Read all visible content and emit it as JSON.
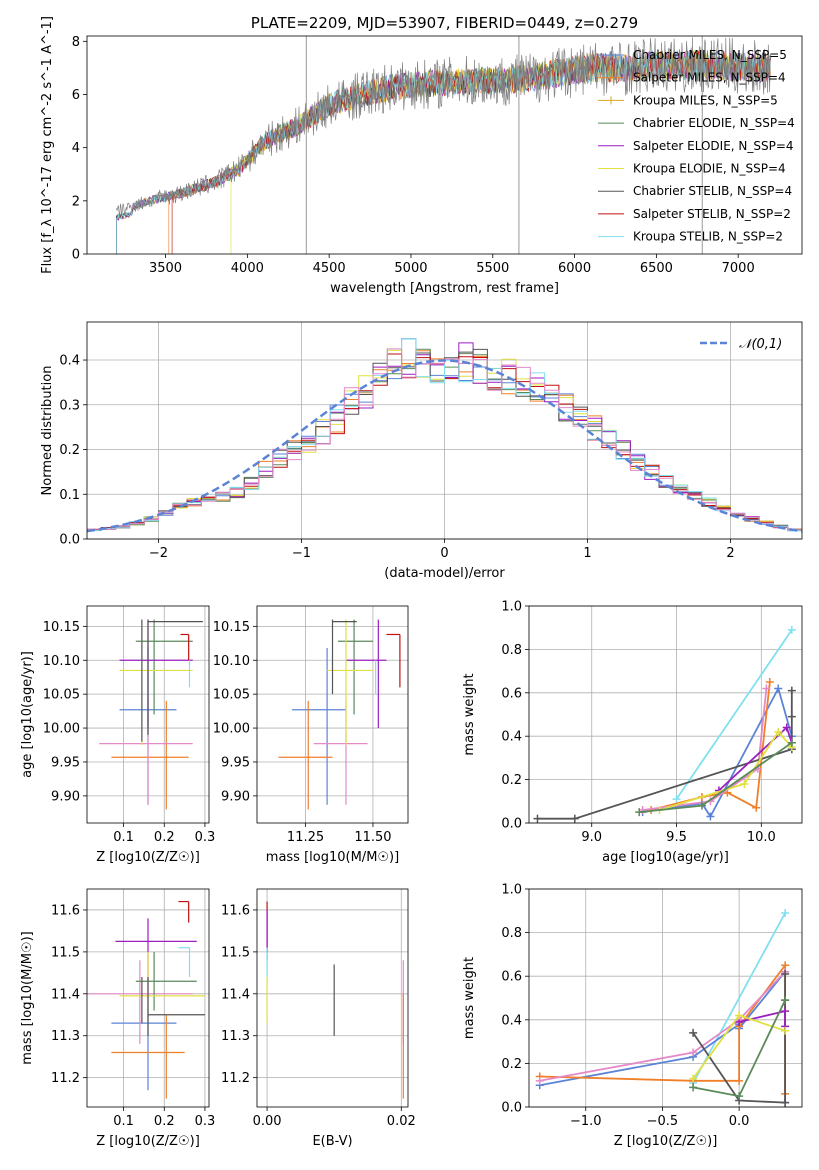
{
  "chart_data": [
    {
      "type": "line",
      "title": "PLATE=2209, MJD=53907, FIBERID=0449, z=0.279",
      "xlabel": "wavelength [Angstrom, rest frame]",
      "ylabel": "Flux [f_λ 10^-17 erg cm^-2 s^-1 A^-1]",
      "xlim": [
        3020,
        7390
      ],
      "ylim": [
        0,
        8.2
      ],
      "xticks": [
        3500,
        4000,
        4500,
        5000,
        5500,
        6000,
        6500,
        7000
      ],
      "yticks": [
        0,
        2,
        4,
        6,
        8
      ],
      "legend_position": "top-right",
      "series": [
        {
          "name": "Chabrier MILES, N_SSP=5",
          "color": "#5b84d6"
        },
        {
          "name": "Salpeter MILES, N_SSP=4",
          "color": "#f07f2a"
        },
        {
          "name": "Kroupa MILES, N_SSP=5",
          "color": "#d9a520"
        },
        {
          "name": "Chabrier ELODIE, N_SSP=4",
          "color": "#5b8a5b"
        },
        {
          "name": "Salpeter ELODIE, N_SSP=4",
          "color": "#9b1fc0"
        },
        {
          "name": "Kroupa ELODIE, N_SSP=4",
          "color": "#e0e040"
        },
        {
          "name": "Chabrier STELIB, N_SSP=4",
          "color": "#555555"
        },
        {
          "name": "Salpeter STELIB, N_SSP=2",
          "color": "#c01010"
        },
        {
          "name": "Kroupa STELIB, N_SSP=2",
          "color": "#80e0f0"
        }
      ],
      "continuum": {
        "x": [
          3200,
          3400,
          3600,
          3800,
          3950,
          4100,
          4300,
          4500,
          4700,
          4900,
          5100,
          5300,
          5500,
          5700,
          5900,
          6100,
          6300,
          6500,
          6700,
          6900,
          7100,
          7200
        ],
        "y": [
          1.6,
          2.0,
          2.3,
          2.7,
          3.2,
          4.2,
          4.8,
          5.6,
          6.0,
          6.3,
          6.4,
          6.5,
          6.5,
          6.6,
          6.8,
          7.0,
          7.0,
          7.1,
          7.1,
          7.1,
          7.0,
          7.0
        ]
      }
    },
    {
      "type": "histogram",
      "xlabel": "(data-model)/error",
      "ylabel": "Normed distribution",
      "xlim": [
        -2.5,
        2.5
      ],
      "ylim": [
        0,
        0.485
      ],
      "xticks": [
        -2,
        -1,
        0,
        1,
        2
      ],
      "yticks": [
        0.0,
        0.1,
        0.2,
        0.3,
        0.4
      ],
      "legend": [
        {
          "name": "𝒩(0,1)",
          "color": "#5b84d6",
          "style": "dashed"
        }
      ],
      "bin_width": 0.1,
      "bins_center_profile": {
        "x": [
          -2.45,
          -2.2,
          -2.0,
          -1.8,
          -1.6,
          -1.4,
          -1.2,
          -1.0,
          -0.8,
          -0.6,
          -0.4,
          -0.2,
          0.0,
          0.2,
          0.4,
          0.6,
          0.8,
          1.0,
          1.2,
          1.4,
          1.6,
          1.8,
          2.0,
          2.2,
          2.45
        ],
        "y": [
          0.02,
          0.03,
          0.05,
          0.08,
          0.09,
          0.11,
          0.17,
          0.21,
          0.25,
          0.32,
          0.37,
          0.41,
          0.39,
          0.4,
          0.37,
          0.34,
          0.31,
          0.26,
          0.21,
          0.16,
          0.12,
          0.09,
          0.06,
          0.04,
          0.02
        ]
      }
    },
    {
      "type": "scatter",
      "xlabel": "Z [log10(Z/Z☉)]",
      "ylabel": "age  [log10(age/yr)]",
      "xlim": [
        0.01,
        0.31
      ],
      "ylim": [
        9.86,
        10.18
      ],
      "xticks": [
        0.1,
        0.2,
        0.3
      ],
      "yticks": [
        9.9,
        9.95,
        10.0,
        10.05,
        10.1,
        10.15
      ],
      "points": [
        {
          "color": "#5b84d6",
          "x": 0.16,
          "xerr": [
            0.09,
            0.23
          ],
          "y": 10.027,
          "yerr": [
            9.887,
            10.118
          ]
        },
        {
          "color": "#f07f2a",
          "x": 0.205,
          "xerr": [
            0.07,
            0.26
          ],
          "y": 9.957,
          "yerr": [
            9.88,
            10.04
          ]
        },
        {
          "color": "#e58ac8",
          "x": 0.16,
          "xerr": [
            0.04,
            0.27
          ],
          "y": 9.977,
          "yerr": [
            9.887,
            10.04
          ]
        },
        {
          "color": "#5b8a5b",
          "x": 0.175,
          "xerr": [
            0.13,
            0.27
          ],
          "y": 10.128,
          "yerr": [
            10.02,
            10.16
          ]
        },
        {
          "color": "#9b1fc0",
          "x": 0.16,
          "xerr": [
            0.09,
            0.27
          ],
          "y": 10.1,
          "yerr": [
            10.0,
            10.16
          ]
        },
        {
          "color": "#e0e040",
          "x": 0.145,
          "xerr": [
            0.09,
            0.27
          ],
          "y": 10.085,
          "yerr": [
            9.975,
            10.16
          ]
        },
        {
          "color": "#555555",
          "x": 0.16,
          "xerr": [
            0.16,
            0.295
          ],
          "y": 10.157,
          "yerr": [
            9.99,
            10.16
          ]
        },
        {
          "color": "#c01010",
          "x": 0.26,
          "xerr": [
            0.24,
            0.26
          ],
          "y": 10.138,
          "yerr": [
            10.1,
            10.138
          ]
        },
        {
          "color": "#80e0f0",
          "x": 0.262,
          "xerr": [
            0.262,
            0.262
          ],
          "y": 10.1,
          "yerr": [
            10.06,
            10.1
          ]
        },
        {
          "color": "#555555",
          "x": 0.145,
          "xerr": [
            0.145,
            0.145
          ],
          "y": 10.03,
          "yerr": [
            9.98,
            10.16
          ]
        }
      ]
    },
    {
      "type": "scatter",
      "xlabel": "mass [log10(M/M☉)]",
      "ylim": [
        9.86,
        10.18
      ],
      "xlim": [
        11.07,
        11.63
      ],
      "xticks": [
        11.25,
        11.5
      ],
      "yticks": [
        9.9,
        9.95,
        10.0,
        10.05,
        10.1,
        10.15
      ],
      "points": [
        {
          "color": "#5b84d6",
          "x": 11.33,
          "xerr": [
            11.2,
            11.4
          ],
          "y": 10.027,
          "yerr": [
            9.887,
            10.118
          ]
        },
        {
          "color": "#f07f2a",
          "x": 11.26,
          "xerr": [
            11.15,
            11.35
          ],
          "y": 9.957,
          "yerr": [
            9.88,
            10.04
          ]
        },
        {
          "color": "#e58ac8",
          "x": 11.4,
          "xerr": [
            11.28,
            11.48
          ],
          "y": 9.977,
          "yerr": [
            9.887,
            10.04
          ]
        },
        {
          "color": "#5b8a5b",
          "x": 11.43,
          "xerr": [
            11.37,
            11.5
          ],
          "y": 10.128,
          "yerr": [
            10.02,
            10.16
          ]
        },
        {
          "color": "#9b1fc0",
          "x": 11.52,
          "xerr": [
            11.4,
            11.55
          ],
          "y": 10.1,
          "yerr": [
            10.0,
            10.16
          ]
        },
        {
          "color": "#e0e040",
          "x": 11.4,
          "xerr": [
            11.33,
            11.5
          ],
          "y": 10.085,
          "yerr": [
            9.975,
            10.16
          ]
        },
        {
          "color": "#555555",
          "x": 11.35,
          "xerr": [
            11.35,
            11.44
          ],
          "y": 10.157,
          "yerr": [
            10.05,
            10.16
          ]
        },
        {
          "color": "#c01010",
          "x": 11.6,
          "xerr": [
            11.55,
            11.6
          ],
          "y": 10.138,
          "yerr": [
            10.06,
            10.138
          ]
        },
        {
          "color": "#80e0f0",
          "x": 11.51,
          "xerr": [
            11.51,
            11.51
          ],
          "y": 10.1,
          "yerr": [
            10.05,
            10.1
          ]
        }
      ]
    },
    {
      "type": "line",
      "xlabel": "age  [log10(age/yr)]",
      "ylabel": "mass weight",
      "xlim": [
        8.63,
        10.24
      ],
      "ylim": [
        0,
        1.0
      ],
      "xticks": [
        9.0,
        9.5,
        10.0
      ],
      "yticks": [
        0.0,
        0.2,
        0.4,
        0.6,
        0.8,
        1.0
      ],
      "series": [
        {
          "color": "#80e0f0",
          "x": [
            9.5,
            10.18
          ],
          "y": [
            0.11,
            0.89
          ]
        },
        {
          "color": "#5b84d6",
          "x": [
            9.3,
            9.65,
            9.7,
            10.1,
            10.18
          ],
          "y": [
            0.05,
            0.09,
            0.03,
            0.62,
            0.4
          ]
        },
        {
          "color": "#f07f2a",
          "x": [
            9.35,
            9.65,
            9.8,
            9.97,
            10.05
          ],
          "y": [
            0.06,
            0.12,
            0.14,
            0.07,
            0.65
          ]
        },
        {
          "color": "#e58ac8",
          "x": [
            9.3,
            9.7,
            9.98,
            10.03
          ],
          "y": [
            0.06,
            0.1,
            0.25,
            0.62
          ]
        },
        {
          "color": "#555555",
          "x": [
            8.68,
            8.9,
            10.18,
            10.18,
            10.18
          ],
          "y": [
            0.02,
            0.02,
            0.34,
            0.49,
            0.61
          ]
        },
        {
          "color": "#9b1fc0",
          "x": [
            9.75,
            10.15,
            10.18
          ],
          "y": [
            0.15,
            0.44,
            0.37
          ]
        },
        {
          "color": "#e0e040",
          "x": [
            9.4,
            9.9,
            10.1,
            10.18
          ],
          "y": [
            0.06,
            0.18,
            0.42,
            0.35
          ]
        },
        {
          "color": "#5b8a5b",
          "x": [
            9.28,
            9.65,
            10.18
          ],
          "y": [
            0.05,
            0.08,
            0.37
          ]
        }
      ]
    },
    {
      "type": "scatter",
      "ylabel": "mass [log10(M/M☉)]",
      "xlabel": "Z [log10(Z/Z☉)]",
      "xlim": [
        0.01,
        0.31
      ],
      "ylim": [
        11.13,
        11.65
      ],
      "xticks": [
        0.1,
        0.2,
        0.3
      ],
      "yticks": [
        11.2,
        11.3,
        11.4,
        11.5,
        11.6
      ],
      "points": [
        {
          "color": "#5b84d6",
          "x": 0.16,
          "xerr": [
            0.07,
            0.23
          ],
          "y": 11.33,
          "yerr": [
            11.17,
            11.4
          ]
        },
        {
          "color": "#f07f2a",
          "x": 0.205,
          "xerr": [
            0.07,
            0.25
          ],
          "y": 11.26,
          "yerr": [
            11.15,
            11.35
          ]
        },
        {
          "color": "#e58ac8",
          "x": 0.14,
          "xerr": [
            0.01,
            0.27
          ],
          "y": 11.4,
          "yerr": [
            11.28,
            11.48
          ]
        },
        {
          "color": "#5b8a5b",
          "x": 0.175,
          "xerr": [
            0.13,
            0.28
          ],
          "y": 11.43,
          "yerr": [
            11.36,
            11.5
          ]
        },
        {
          "color": "#9b1fc0",
          "x": 0.16,
          "xerr": [
            0.08,
            0.28
          ],
          "y": 11.525,
          "yerr": [
            11.4,
            11.58
          ]
        },
        {
          "color": "#e0e040",
          "x": 0.16,
          "xerr": [
            0.09,
            0.3
          ],
          "y": 11.395,
          "yerr": [
            11.33,
            11.5
          ]
        },
        {
          "color": "#555555",
          "x": 0.16,
          "xerr": [
            0.16,
            0.3
          ],
          "y": 11.35,
          "yerr": [
            11.3,
            11.44
          ]
        },
        {
          "color": "#c01010",
          "x": 0.26,
          "xerr": [
            0.235,
            0.26
          ],
          "y": 11.62,
          "yerr": [
            11.57,
            11.62
          ]
        },
        {
          "color": "#80e0f0",
          "x": 0.262,
          "xerr": [
            0.235,
            0.262
          ],
          "y": 11.51,
          "yerr": [
            11.44,
            11.51
          ]
        },
        {
          "color": "#555555",
          "x": 0.145,
          "xerr": [
            0.145,
            0.145
          ],
          "y": 11.4,
          "yerr": [
            11.33,
            11.44
          ]
        }
      ]
    },
    {
      "type": "scatter",
      "xlabel": "E(B-V)",
      "xlim": [
        -0.0015,
        0.021
      ],
      "ylim": [
        11.13,
        11.65
      ],
      "xticks": [
        0.0,
        0.02
      ],
      "yticks": [
        11.2,
        11.3,
        11.4,
        11.5,
        11.6
      ],
      "points": [
        {
          "color": "#c01010",
          "x": 0.0,
          "yerr": [
            11.5,
            11.62
          ]
        },
        {
          "color": "#9b1fc0",
          "x": 0.0,
          "yerr": [
            11.48,
            11.6
          ]
        },
        {
          "color": "#e0e040",
          "x": 0.0,
          "yerr": [
            11.33,
            11.48
          ]
        },
        {
          "color": "#80e0f0",
          "x": 0.0,
          "yerr": [
            11.44,
            11.51
          ]
        },
        {
          "color": "#555555",
          "x": 0.01,
          "yerr": [
            11.3,
            11.47
          ]
        },
        {
          "color": "#e58ac8",
          "x": 0.0203,
          "yerr": [
            11.28,
            11.48
          ]
        },
        {
          "color": "#f07f2a",
          "x": 0.0203,
          "yerr": [
            11.15,
            11.4
          ]
        }
      ]
    },
    {
      "type": "line",
      "xlabel": "Z [log10(Z/Z☉)]",
      "ylabel": "mass weight",
      "xlim": [
        -1.37,
        0.41
      ],
      "ylim": [
        0,
        1.0
      ],
      "xticks": [
        -1.0,
        -0.5,
        0.0
      ],
      "yticks": [
        0.0,
        0.2,
        0.4,
        0.6,
        0.8,
        1.0
      ],
      "series": [
        {
          "color": "#80e0f0",
          "x": [
            -0.3,
            0.3
          ],
          "y": [
            0.11,
            0.89
          ]
        },
        {
          "color": "#5b84d6",
          "x": [
            -1.3,
            -0.3,
            0.0,
            0.0,
            0.3,
            0.3
          ],
          "y": [
            0.1,
            0.23,
            0.38,
            0.36,
            0.62,
            0.02
          ]
        },
        {
          "color": "#f07f2a",
          "x": [
            -1.3,
            -0.3,
            0.0,
            0.0,
            0.3,
            0.3
          ],
          "y": [
            0.14,
            0.12,
            0.12,
            0.37,
            0.65,
            0.06
          ]
        },
        {
          "color": "#e58ac8",
          "x": [
            -1.3,
            -0.3,
            0.0,
            0.3
          ],
          "y": [
            0.12,
            0.25,
            0.4,
            0.62
          ]
        },
        {
          "color": "#555555",
          "x": [
            -0.3,
            0.0,
            0.3,
            0.3,
            0.3
          ],
          "y": [
            0.34,
            0.03,
            0.02,
            0.49,
            0.61
          ]
        },
        {
          "color": "#9b1fc0",
          "x": [
            0.0,
            0.3,
            0.3
          ],
          "y": [
            0.39,
            0.44,
            0.37
          ]
        },
        {
          "color": "#e0e040",
          "x": [
            -0.3,
            0.0,
            0.3
          ],
          "y": [
            0.13,
            0.42,
            0.35
          ]
        },
        {
          "color": "#5b8a5b",
          "x": [
            -0.3,
            0.0,
            0.3
          ],
          "y": [
            0.09,
            0.05,
            0.49
          ]
        }
      ]
    }
  ]
}
